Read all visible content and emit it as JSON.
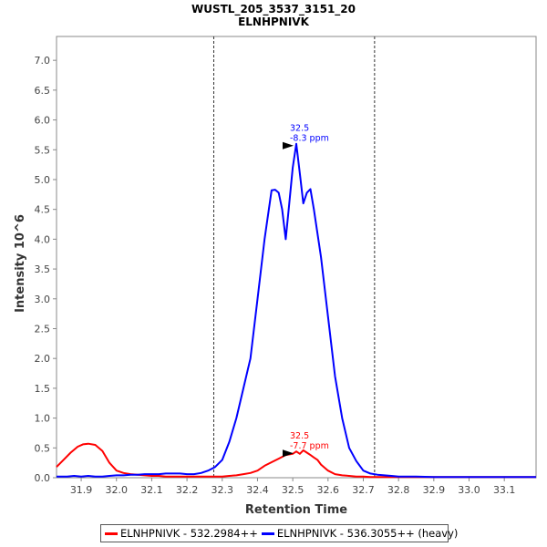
{
  "chart_data": {
    "type": "line",
    "title": "WUSTL_205_3537_3151_20",
    "subtitle": "ELNHPNIVK",
    "xlabel": "Retention Time",
    "ylabel": "Intensity 10^6",
    "xlim": [
      31.83,
      33.19
    ],
    "ylim": [
      0,
      7.4
    ],
    "x_ticks": [
      "31.9",
      "32.0",
      "32.1",
      "32.2",
      "32.3",
      "32.4",
      "32.5",
      "32.6",
      "32.7",
      "32.8",
      "32.9",
      "33.0",
      "33.1"
    ],
    "y_ticks": [
      "0.0",
      "0.5",
      "1.0",
      "1.5",
      "2.0",
      "2.5",
      "3.0",
      "3.5",
      "4.0",
      "4.5",
      "5.0",
      "5.5",
      "6.0",
      "6.5",
      "7.0"
    ],
    "grid": false,
    "legend_position": "bottom",
    "boundary_lines": [
      32.276,
      32.732
    ],
    "series": [
      {
        "name": "ELNHPNIVK - 532.2984++",
        "color": "#ff0000",
        "x": [
          31.83,
          31.85,
          31.87,
          31.89,
          31.905,
          31.92,
          31.94,
          31.96,
          31.98,
          32.0,
          32.02,
          32.04,
          32.06,
          32.08,
          32.1,
          32.12,
          32.14,
          32.16,
          32.18,
          32.2,
          32.22,
          32.24,
          32.26,
          32.28,
          32.3,
          32.32,
          32.34,
          32.36,
          32.38,
          32.4,
          32.42,
          32.44,
          32.46,
          32.48,
          32.5,
          32.51,
          32.52,
          32.53,
          32.54,
          32.55,
          32.56,
          32.57,
          32.58,
          32.6,
          32.62,
          32.64,
          32.66,
          32.68,
          32.7,
          32.72,
          32.74,
          32.76,
          32.78,
          32.8,
          32.85,
          32.9,
          33.0,
          33.1,
          33.19
        ],
        "y": [
          0.18,
          0.3,
          0.42,
          0.52,
          0.56,
          0.57,
          0.55,
          0.45,
          0.25,
          0.12,
          0.08,
          0.06,
          0.05,
          0.04,
          0.03,
          0.03,
          0.02,
          0.02,
          0.02,
          0.02,
          0.02,
          0.02,
          0.02,
          0.02,
          0.02,
          0.03,
          0.04,
          0.06,
          0.08,
          0.12,
          0.2,
          0.26,
          0.32,
          0.38,
          0.4,
          0.44,
          0.4,
          0.46,
          0.42,
          0.38,
          0.34,
          0.3,
          0.22,
          0.12,
          0.06,
          0.04,
          0.03,
          0.02,
          0.02,
          0.01,
          0.01,
          0.01,
          0.01,
          0.01,
          0.01,
          0.01,
          0.01,
          0.01,
          0.01
        ]
      },
      {
        "name": "ELNHPNIVK - 536.3055++ (heavy)",
        "color": "#0000ff",
        "x": [
          31.83,
          31.86,
          31.88,
          31.9,
          31.92,
          31.94,
          31.96,
          31.98,
          32.0,
          32.02,
          32.04,
          32.06,
          32.08,
          32.1,
          32.12,
          32.14,
          32.16,
          32.18,
          32.2,
          32.22,
          32.24,
          32.26,
          32.28,
          32.3,
          32.32,
          32.34,
          32.36,
          32.38,
          32.4,
          32.42,
          32.44,
          32.45,
          32.46,
          32.47,
          32.48,
          32.49,
          32.5,
          32.51,
          32.52,
          32.53,
          32.54,
          32.55,
          32.56,
          32.58,
          32.6,
          32.62,
          32.64,
          32.66,
          32.68,
          32.7,
          32.72,
          32.74,
          32.76,
          32.78,
          32.8,
          32.85,
          32.9,
          33.0,
          33.1,
          33.19
        ],
        "y": [
          0.02,
          0.02,
          0.03,
          0.02,
          0.03,
          0.02,
          0.02,
          0.03,
          0.04,
          0.04,
          0.05,
          0.05,
          0.06,
          0.06,
          0.06,
          0.07,
          0.07,
          0.07,
          0.06,
          0.06,
          0.08,
          0.12,
          0.18,
          0.3,
          0.6,
          1.0,
          1.5,
          2.0,
          3.0,
          4.0,
          4.82,
          4.83,
          4.78,
          4.5,
          4.0,
          4.6,
          5.2,
          5.6,
          5.1,
          4.6,
          4.78,
          4.84,
          4.5,
          3.7,
          2.7,
          1.7,
          1.0,
          0.5,
          0.28,
          0.12,
          0.07,
          0.05,
          0.04,
          0.03,
          0.02,
          0.02,
          0.01,
          0.01,
          0.01,
          0.01
        ]
      }
    ],
    "annotations": [
      {
        "series": 1,
        "x": 32.51,
        "y": 5.6,
        "rt": "32.5",
        "ppm": "-8.3 ppm"
      },
      {
        "series": 0,
        "x": 32.51,
        "y": 0.44,
        "rt": "32.5",
        "ppm": "-7.7 ppm"
      }
    ]
  },
  "legend": {
    "items": [
      {
        "label": "ELNHPNIVK - 532.2984++",
        "color": "#ff0000"
      },
      {
        "label": "ELNHPNIVK - 536.3055++ (heavy)",
        "color": "#0000ff"
      }
    ]
  }
}
